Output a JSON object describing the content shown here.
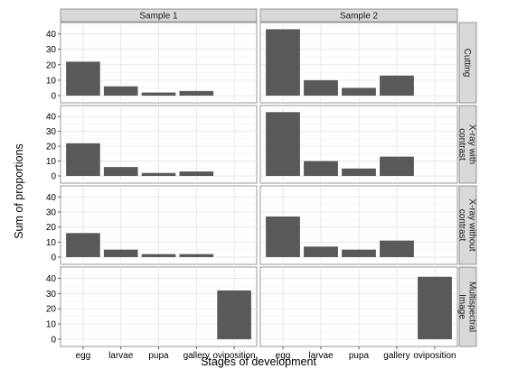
{
  "chart_data": {
    "type": "bar",
    "xlabel": "Stages of development",
    "ylabel": "Sum of proportions",
    "categories": [
      "egg",
      "larvae",
      "pupa",
      "gallery",
      "oviposition"
    ],
    "ylim": [
      0,
      45
    ],
    "yticks": [
      0,
      10,
      20,
      30,
      40
    ],
    "columns": [
      "Sample 1",
      "Sample 2"
    ],
    "rows": [
      {
        "label_lines": [
          "Cutting"
        ]
      },
      {
        "label_lines": [
          "X-ray with",
          "contrast"
        ]
      },
      {
        "label_lines": [
          "X-ray without",
          "contrast"
        ]
      },
      {
        "label_lines": [
          "Multispectral",
          "Image"
        ]
      }
    ],
    "grid": true,
    "bar_color": "#595959",
    "panels": [
      {
        "row": "Cutting",
        "column": "Sample 1",
        "values": [
          22,
          6,
          2,
          3,
          0
        ]
      },
      {
        "row": "Cutting",
        "column": "Sample 2",
        "values": [
          43,
          10,
          5,
          13,
          0
        ]
      },
      {
        "row": "X-ray with contrast",
        "column": "Sample 1",
        "values": [
          22,
          6,
          2,
          3,
          0
        ]
      },
      {
        "row": "X-ray with contrast",
        "column": "Sample 2",
        "values": [
          43,
          10,
          5,
          13,
          0
        ]
      },
      {
        "row": "X-ray without contrast",
        "column": "Sample 1",
        "values": [
          16,
          5,
          2,
          2,
          0
        ]
      },
      {
        "row": "X-ray without contrast",
        "column": "Sample 2",
        "values": [
          27,
          7,
          5,
          11,
          0
        ]
      },
      {
        "row": "Multispectral Image",
        "column": "Sample 1",
        "values": [
          0,
          0,
          0,
          0,
          32
        ]
      },
      {
        "row": "Multispectral Image",
        "column": "Sample 2",
        "values": [
          0,
          0,
          0,
          0,
          41
        ]
      }
    ]
  }
}
